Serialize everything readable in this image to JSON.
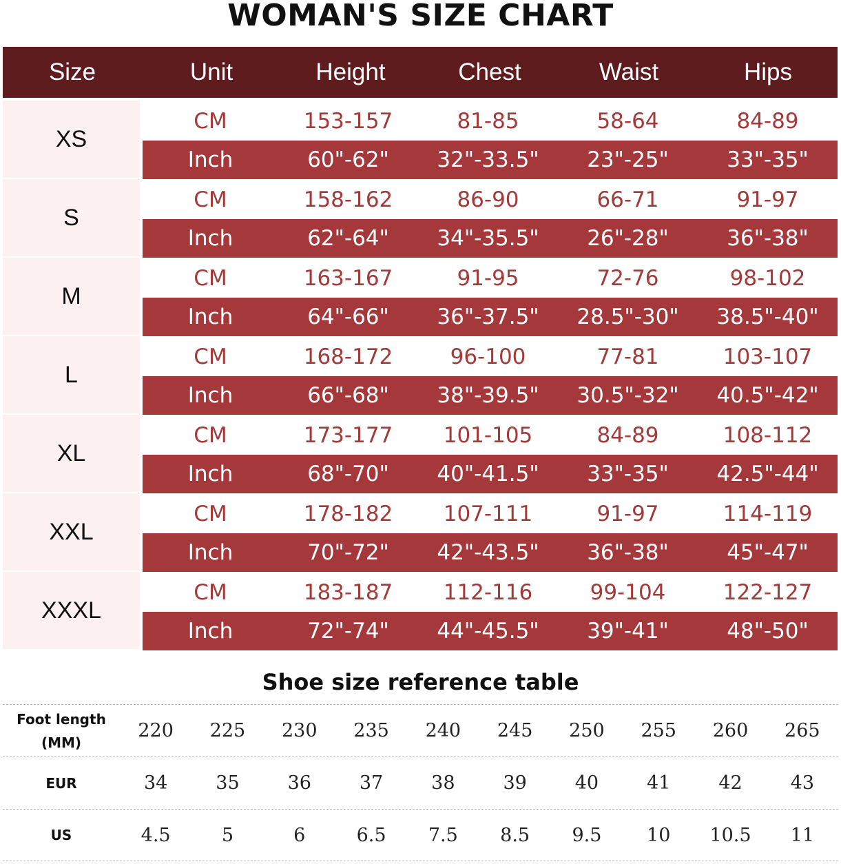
{
  "title": "WOMAN'S SIZE CHART",
  "size_table": {
    "headers": [
      "Size",
      "Unit",
      "Height",
      "Chest",
      "Waist",
      "Hips"
    ],
    "groups": [
      {
        "size": "XS",
        "cm": [
          "CM",
          "153-157",
          "81-85",
          "58-64",
          "84-89"
        ],
        "inch": [
          "Inch",
          "60\"-62\"",
          "32\"-33.5\"",
          "23\"-25\"",
          "33\"-35\""
        ]
      },
      {
        "size": "S",
        "cm": [
          "CM",
          "158-162",
          "86-90",
          "66-71",
          "91-97"
        ],
        "inch": [
          "Inch",
          "62\"-64\"",
          "34\"-35.5\"",
          "26\"-28\"",
          "36\"-38\""
        ]
      },
      {
        "size": "M",
        "cm": [
          "CM",
          "163-167",
          "91-95",
          "72-76",
          "98-102"
        ],
        "inch": [
          "Inch",
          "64\"-66\"",
          "36\"-37.5\"",
          "28.5\"-30\"",
          "38.5\"-40\""
        ]
      },
      {
        "size": "L",
        "cm": [
          "CM",
          "168-172",
          "96-100",
          "77-81",
          "103-107"
        ],
        "inch": [
          "Inch",
          "66\"-68\"",
          "38\"-39.5\"",
          "30.5\"-32\"",
          "40.5\"-42\""
        ]
      },
      {
        "size": "XL",
        "cm": [
          "CM",
          "173-177",
          "101-105",
          "84-89",
          "108-112"
        ],
        "inch": [
          "Inch",
          "68\"-70\"",
          "40\"-41.5\"",
          "33\"-35\"",
          "42.5\"-44\""
        ]
      },
      {
        "size": "XXL",
        "cm": [
          "CM",
          "178-182",
          "107-111",
          "91-97",
          "114-119"
        ],
        "inch": [
          "Inch",
          "70\"-72\"",
          "42\"-43.5\"",
          "36\"-38\"",
          "45\"-47\""
        ]
      },
      {
        "size": "XXXL",
        "cm": [
          "CM",
          "183-187",
          "112-116",
          "99-104",
          "122-127"
        ],
        "inch": [
          "Inch",
          "72\"-74\"",
          "44\"-45.5\"",
          "39\"-41\"",
          "48\"-50\""
        ]
      }
    ]
  },
  "shoe": {
    "title": "Shoe size reference table",
    "rows": [
      {
        "label": "Foot length",
        "sublabel": "(MM)",
        "values": [
          "220",
          "225",
          "230",
          "235",
          "240",
          "245",
          "250",
          "255",
          "260",
          "265"
        ]
      },
      {
        "label": "EUR",
        "sublabel": "",
        "values": [
          "34",
          "35",
          "36",
          "37",
          "38",
          "39",
          "40",
          "41",
          "42",
          "43"
        ]
      },
      {
        "label": "US",
        "sublabel": "",
        "values": [
          "4.5",
          "5",
          "6",
          "6.5",
          "7.5",
          "8.5",
          "9.5",
          "10",
          "10.5",
          "11"
        ]
      }
    ]
  },
  "colors": {
    "header_bg": "#5e1c1e",
    "inch_row_bg": "#a4383b",
    "cm_text": "#a33a3a",
    "size_cell_bg": "#fdf0f0"
  },
  "chart_data": {
    "type": "table",
    "title": "WOMAN'S SIZE CHART",
    "columns": [
      "Size",
      "Unit",
      "Height",
      "Chest",
      "Waist",
      "Hips"
    ],
    "rows": [
      [
        "XS",
        "CM",
        "153-157",
        "81-85",
        "58-64",
        "84-89"
      ],
      [
        "XS",
        "Inch",
        "60\"-62\"",
        "32\"-33.5\"",
        "23\"-25\"",
        "33\"-35\""
      ],
      [
        "S",
        "CM",
        "158-162",
        "86-90",
        "66-71",
        "91-97"
      ],
      [
        "S",
        "Inch",
        "62\"-64\"",
        "34\"-35.5\"",
        "26\"-28\"",
        "36\"-38\""
      ],
      [
        "M",
        "CM",
        "163-167",
        "91-95",
        "72-76",
        "98-102"
      ],
      [
        "M",
        "Inch",
        "64\"-66\"",
        "36\"-37.5\"",
        "28.5\"-30\"",
        "38.5\"-40\""
      ],
      [
        "L",
        "CM",
        "168-172",
        "96-100",
        "77-81",
        "103-107"
      ],
      [
        "L",
        "Inch",
        "66\"-68\"",
        "38\"-39.5\"",
        "30.5\"-32\"",
        "40.5\"-42\""
      ],
      [
        "XL",
        "CM",
        "173-177",
        "101-105",
        "84-89",
        "108-112"
      ],
      [
        "XL",
        "Inch",
        "68\"-70\"",
        "40\"-41.5\"",
        "33\"-35\"",
        "42.5\"-44\""
      ],
      [
        "XXL",
        "CM",
        "178-182",
        "107-111",
        "91-97",
        "114-119"
      ],
      [
        "XXL",
        "Inch",
        "70\"-72\"",
        "42\"-43.5\"",
        "36\"-38\"",
        "45\"-47\""
      ],
      [
        "XXXL",
        "CM",
        "183-187",
        "112-116",
        "99-104",
        "122-127"
      ],
      [
        "XXXL",
        "Inch",
        "72\"-74\"",
        "44\"-45.5\"",
        "39\"-41\"",
        "48\"-50\""
      ]
    ],
    "shoe_table": {
      "title": "Shoe size reference table",
      "foot_length_mm": [
        220,
        225,
        230,
        235,
        240,
        245,
        250,
        255,
        260,
        265
      ],
      "eur": [
        34,
        35,
        36,
        37,
        38,
        39,
        40,
        41,
        42,
        43
      ],
      "us": [
        4.5,
        5,
        6,
        6.5,
        7.5,
        8.5,
        9.5,
        10,
        10.5,
        11
      ]
    }
  }
}
